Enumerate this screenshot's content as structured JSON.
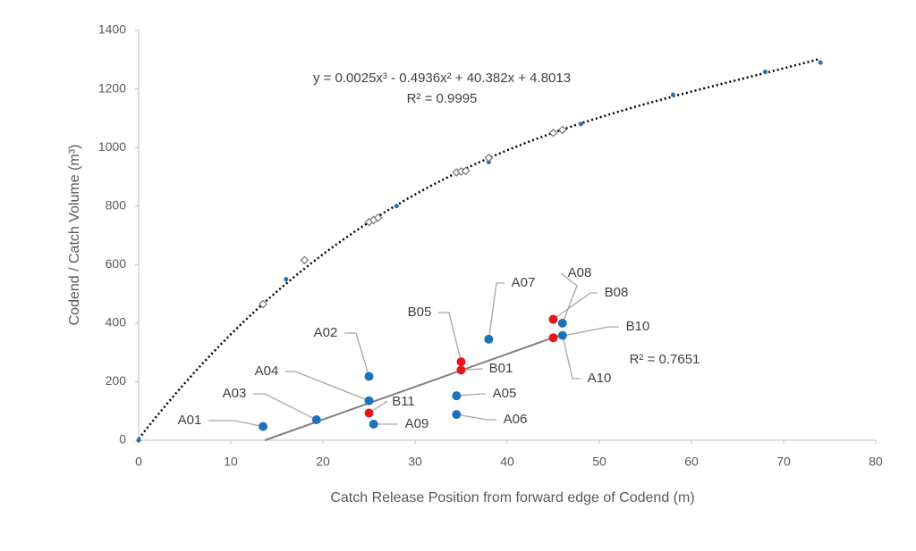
{
  "chart_data": {
    "type": "scatter",
    "x_label": "Catch Release Position from forward edge of Codend (m)",
    "y_label": "Codend / Catch Volume (m³)",
    "xlim": [
      0,
      80
    ],
    "xticks": [
      0,
      10,
      20,
      30,
      40,
      50,
      60,
      70,
      80
    ],
    "ylim": [
      0,
      1400
    ],
    "yticks": [
      0,
      200,
      400,
      600,
      800,
      1000,
      1200,
      1400
    ],
    "grid": false,
    "series": [
      {
        "marker": "small-dot",
        "color": "#1f72b8",
        "x": [
          0,
          16,
          28,
          38,
          48,
          58,
          68,
          74
        ],
        "values": [
          0,
          550,
          800,
          950,
          1080,
          1180,
          1258,
          1290
        ]
      },
      {
        "marker": "diamond",
        "color": "#7f7f7f",
        "x": [
          13.5,
          18,
          25,
          25.5,
          26,
          34.5,
          35,
          35.5,
          38,
          45,
          46
        ],
        "values": [
          465,
          615,
          745,
          752,
          760,
          915,
          918,
          920,
          965,
          1050,
          1060
        ]
      },
      {
        "marker": "dot",
        "color": "#1f72b8",
        "labels": [
          "A01",
          "A02",
          "A03",
          "A04",
          "A05",
          "A06",
          "A07",
          "A08",
          "A09",
          "A10"
        ],
        "x": [
          13.5,
          25,
          19.3,
          25,
          34.5,
          34.5,
          38,
          46,
          25.5,
          46
        ],
        "values": [
          47,
          218,
          70,
          135,
          152,
          88,
          345,
          400,
          55,
          358
        ]
      },
      {
        "marker": "dot",
        "color": "#e8141b",
        "labels": [
          "B05",
          "B01",
          "B11",
          "B08",
          "B10"
        ],
        "x": [
          35,
          35,
          25,
          45,
          45
        ],
        "values": [
          268,
          240,
          93,
          413,
          350
        ]
      }
    ],
    "trendlines": [
      {
        "type": "poly",
        "label": "y = 0.0025x³ - 0.4936x² + 40.382x + 4.8013",
        "r2_label": "R² = 0.9995",
        "coefficients": [
          0.0025,
          -0.4936,
          40.382,
          4.8013
        ],
        "color": "#000000"
      },
      {
        "type": "linear",
        "r2_label": "R² = 0.7651",
        "x": [
          13.7,
          46
        ],
        "values": [
          0,
          362
        ],
        "color": "#808080"
      }
    ]
  }
}
